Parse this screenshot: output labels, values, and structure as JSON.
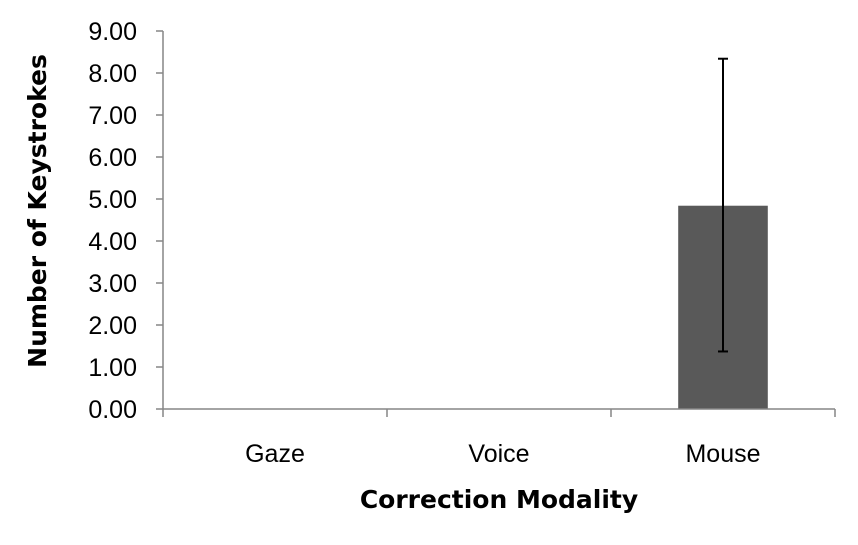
{
  "chart_data": {
    "type": "bar",
    "title": "",
    "xlabel": "Correction Modality",
    "ylabel": "Number of Keystrokes",
    "categories": [
      "Gaze",
      "Voice",
      "Mouse"
    ],
    "values": [
      0,
      0,
      4.84
    ],
    "error_low": [
      0,
      0,
      1.37
    ],
    "error_high": [
      0,
      0,
      8.34
    ],
    "ylim": [
      0,
      9
    ],
    "yticks": [
      0,
      1,
      2,
      3,
      4,
      5,
      6,
      7,
      8,
      9
    ],
    "ytick_labels": [
      "0.00",
      "1.00",
      "2.00",
      "3.00",
      "4.00",
      "5.00",
      "6.00",
      "7.00",
      "8.00",
      "9.00"
    ],
    "grid": false,
    "legend": "none",
    "bar_color": "#595959",
    "axis_color": "#868686"
  }
}
